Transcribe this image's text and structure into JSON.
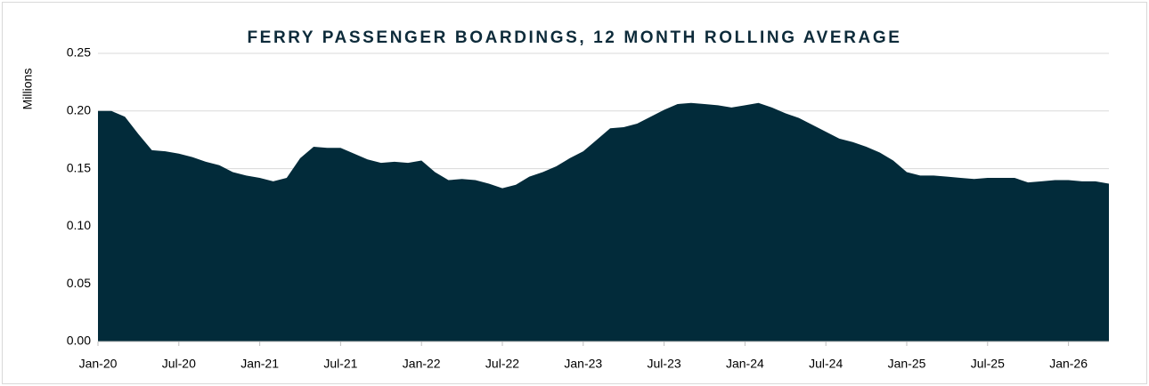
{
  "chart_data": {
    "type": "area",
    "title": "FERRY PASSENGER BOARDINGS, 12 MONTH ROLLING AVERAGE",
    "ylabel": "Millions",
    "categories": [
      "Jan-20",
      null,
      null,
      null,
      null,
      null,
      "Jul-20",
      null,
      null,
      null,
      null,
      null,
      "Jan-21",
      null,
      null,
      null,
      null,
      null,
      "Jul-21",
      null,
      null,
      null,
      null,
      null,
      "Jan-22",
      null,
      null,
      null,
      null,
      null,
      "Jul-22",
      null,
      null,
      null,
      null,
      null,
      "Jan-23",
      null,
      null,
      null,
      null,
      null,
      "Jul-23",
      null,
      null,
      null,
      null,
      null,
      "Jan-24",
      null,
      null,
      null,
      null,
      null,
      "Jul-24",
      null,
      null,
      null,
      null,
      null,
      "Jan-25",
      null,
      null,
      null,
      null,
      null,
      "Jul-25",
      null,
      null,
      null,
      null,
      null,
      "Jan-26",
      null,
      null,
      null
    ],
    "values": [
      0.2,
      0.2,
      0.195,
      0.18,
      0.166,
      0.165,
      0.163,
      0.16,
      0.156,
      0.153,
      0.147,
      0.144,
      0.142,
      0.139,
      0.142,
      0.159,
      0.169,
      0.168,
      0.168,
      0.163,
      0.158,
      0.155,
      0.156,
      0.155,
      0.157,
      0.147,
      0.14,
      0.141,
      0.14,
      0.137,
      0.133,
      0.136,
      0.143,
      0.147,
      0.152,
      0.159,
      0.165,
      0.175,
      0.185,
      0.186,
      0.189,
      0.195,
      0.201,
      0.206,
      0.207,
      0.206,
      0.205,
      0.203,
      0.205,
      0.207,
      0.203,
      0.198,
      0.194,
      0.188,
      0.182,
      0.176,
      0.173,
      0.169,
      0.164,
      0.157,
      0.147,
      0.144,
      0.144,
      0.143,
      0.142,
      0.141,
      0.142,
      0.142,
      0.142,
      0.138,
      0.139,
      0.14,
      0.14,
      0.139,
      0.139,
      0.137
    ],
    "color": "#022b3a",
    "ylim": [
      0,
      0.25
    ],
    "yticks": [
      {
        "value": 0,
        "label": "0.00"
      },
      0.05,
      {
        "value": 0.1,
        "label": "0.10"
      },
      0.15,
      {
        "value": 0.2,
        "label": "0.20"
      },
      0.25
    ],
    "grid": true
  }
}
